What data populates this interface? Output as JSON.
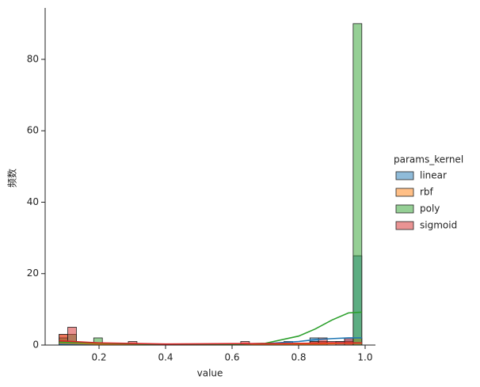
{
  "chart_data": {
    "type": "histogram",
    "x_label": "value",
    "y_label": "频数",
    "bins": [
      0.08,
      0.106,
      0.132,
      0.158,
      0.184,
      0.21,
      0.236,
      0.262,
      0.288,
      0.314,
      0.34,
      0.366,
      0.392,
      0.418,
      0.444,
      0.47,
      0.496,
      0.522,
      0.548,
      0.574,
      0.6,
      0.626,
      0.652,
      0.678,
      0.704,
      0.73,
      0.756,
      0.782,
      0.808,
      0.834,
      0.86,
      0.886,
      0.912,
      0.938,
      0.964,
      0.99
    ],
    "kde_x": [
      0.08,
      0.2,
      0.4,
      0.6,
      0.7,
      0.8,
      0.85,
      0.9,
      0.95,
      0.99
    ],
    "legend_title": "params_kernel",
    "legend": "right",
    "series": [
      {
        "name": "linear",
        "color": "#1f77b4",
        "values": [
          1,
          0,
          0,
          0,
          0,
          0,
          0,
          0,
          0,
          0,
          0,
          0,
          0,
          0,
          0,
          0,
          0,
          0,
          0,
          0,
          0,
          0,
          0,
          0,
          0,
          0,
          1,
          0,
          0,
          2,
          1,
          0,
          1,
          2,
          25
        ],
        "kde": [
          0.3,
          0.2,
          0.1,
          0.2,
          0.4,
          1,
          1.5,
          1.8,
          2,
          2
        ]
      },
      {
        "name": "rbf",
        "color": "#ff7f0e",
        "values": [
          3,
          1,
          0,
          0,
          0,
          0,
          0,
          0,
          0,
          0,
          0,
          0,
          0,
          0,
          0,
          0,
          0,
          0,
          0,
          0,
          0,
          0,
          0,
          0,
          0,
          0,
          0,
          0,
          0,
          1,
          1,
          0,
          0,
          1,
          2
        ],
        "kde": [
          0.6,
          0.3,
          0.1,
          0.1,
          0.1,
          0.2,
          0.3,
          0.4,
          0.5,
          0.5
        ]
      },
      {
        "name": "poly",
        "color": "#2ca02c",
        "values": [
          2,
          3,
          0,
          0,
          2,
          0,
          0,
          0,
          0,
          0,
          0,
          0,
          0,
          0,
          0,
          0,
          0,
          0,
          0,
          0,
          0,
          0,
          0,
          0,
          0,
          0,
          0,
          0,
          0,
          0,
          0,
          0,
          0,
          0,
          90
        ],
        "kde": [
          0.8,
          0.5,
          0.2,
          0.2,
          0.5,
          2.5,
          4.5,
          7,
          9,
          9.2
        ]
      },
      {
        "name": "sigmoid",
        "color": "#d62728",
        "values": [
          3,
          5,
          0,
          0,
          0,
          0,
          0,
          0,
          1,
          0,
          0,
          0,
          0,
          0,
          0,
          0,
          0,
          0,
          0,
          0,
          0,
          1,
          0,
          0,
          0,
          0,
          0,
          0,
          0,
          1,
          2,
          1,
          1,
          2,
          0
        ],
        "kde": [
          1.2,
          0.6,
          0.3,
          0.4,
          0.4,
          0.5,
          0.5,
          0.6,
          0.6,
          0.6
        ]
      }
    ],
    "xlim": [
      0.038,
      1.031
    ],
    "ylim": [
      0,
      94.4
    ],
    "xticks": [
      0.2,
      0.4,
      0.6,
      0.8,
      {
        "value": 1,
        "label": "1.0"
      }
    ],
    "yticks": [
      0,
      20,
      40,
      60,
      80
    ]
  }
}
